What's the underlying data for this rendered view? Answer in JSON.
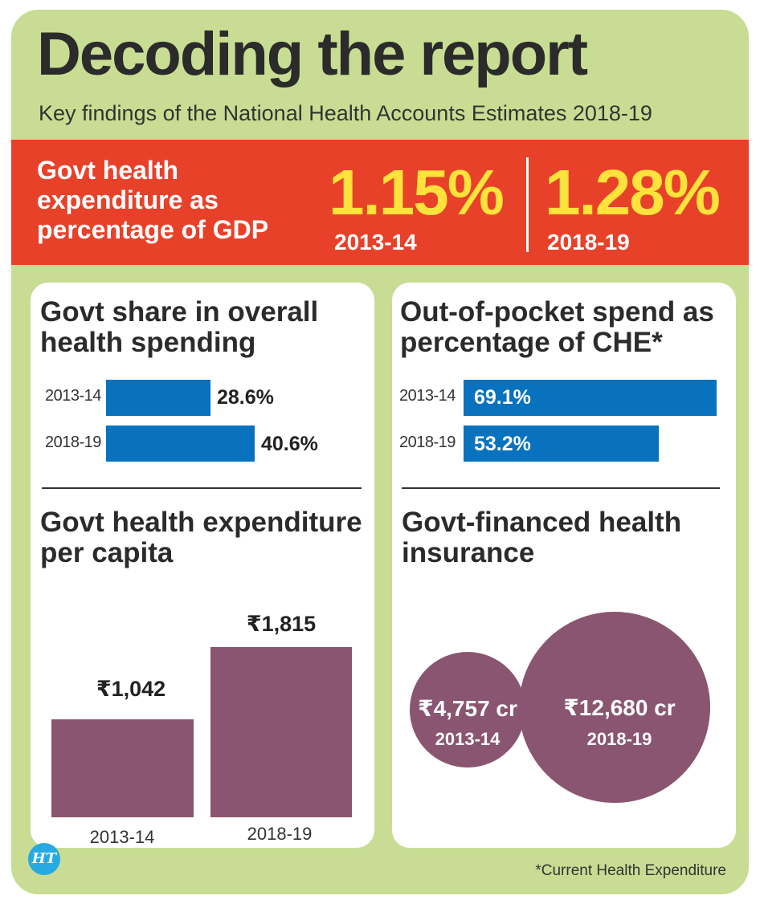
{
  "header": {
    "title": "Decoding the report",
    "subtitle": "Key findings of the National Health Accounts Estimates 2018-19"
  },
  "gdp_band": {
    "label": "Govt health expenditure as percentage of GDP",
    "stats": [
      {
        "value": "1.15%",
        "year": "2013-14"
      },
      {
        "value": "1.28%",
        "year": "2018-19"
      }
    ],
    "colors": {
      "background": "#e8412a",
      "value": "#ffe23b"
    }
  },
  "govt_share": {
    "title": "Govt share in overall health spending"
  },
  "oop": {
    "title": "Out-of-pocket spend as percentage of CHE*"
  },
  "per_capita": {
    "title": "Govt health expenditure per capita"
  },
  "insurance": {
    "title": "Govt-financed health insurance"
  },
  "chart_data": [
    {
      "type": "bar",
      "orientation": "horizontal",
      "title": "Govt share in overall health spending",
      "categories": [
        "2013-14",
        "2018-19"
      ],
      "values": [
        28.6,
        40.6
      ],
      "value_labels": [
        "28.6%",
        "40.6%"
      ],
      "unit": "%",
      "xlim": [
        0,
        100
      ],
      "color": "#0872bf"
    },
    {
      "type": "bar",
      "orientation": "horizontal",
      "title": "Out-of-pocket spend as percentage of CHE*",
      "categories": [
        "2013-14",
        "2018-19"
      ],
      "values": [
        69.1,
        53.2
      ],
      "value_labels": [
        "69.1%",
        "53.2%"
      ],
      "unit": "%",
      "xlim": [
        0,
        69.1
      ],
      "color": "#0872bf"
    },
    {
      "type": "bar",
      "orientation": "vertical",
      "title": "Govt health expenditure per capita",
      "categories": [
        "2013-14",
        "2018-19"
      ],
      "values": [
        1042,
        1815
      ],
      "value_labels": [
        "₹1,042",
        "₹1,815"
      ],
      "unit": "₹",
      "ylim": [
        0,
        1815
      ],
      "color": "#8a5570"
    },
    {
      "type": "bubble",
      "title": "Govt-financed health insurance",
      "categories": [
        "2013-14",
        "2018-19"
      ],
      "values": [
        4757,
        12680
      ],
      "value_labels": [
        "₹4,757 cr",
        "₹12,680 cr"
      ],
      "unit": "₹ cr",
      "color": "#8a5570"
    }
  ],
  "footnote": "*Current Health Expenditure",
  "logo": {
    "text": "HT",
    "color": "#27a9e1"
  }
}
